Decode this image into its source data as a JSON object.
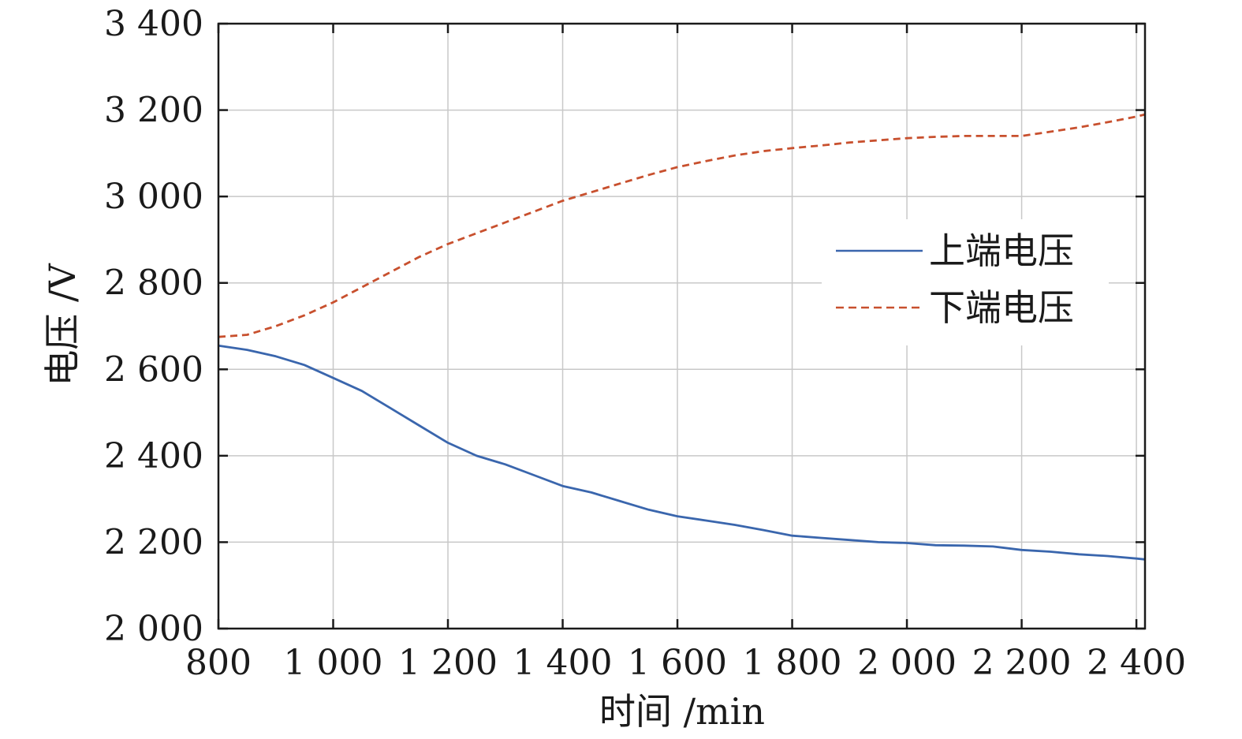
{
  "chart_data": {
    "type": "line",
    "title": "",
    "xlabel": "时间 /min",
    "ylabel": "电压 /V",
    "xlim": [
      800,
      2415
    ],
    "ylim": [
      2000,
      3400
    ],
    "x_ticks": [
      800,
      1000,
      1200,
      1400,
      1600,
      1800,
      2000,
      2200,
      2400
    ],
    "x_tick_labels": [
      "800",
      "1 000",
      "1 200",
      "1 400",
      "1 600",
      "1 800",
      "2 000",
      "2 200",
      "2 400"
    ],
    "y_ticks": [
      2000,
      2200,
      2400,
      2600,
      2800,
      3000,
      3200,
      3400
    ],
    "y_tick_labels": [
      "2 000",
      "2 200",
      "2 400",
      "2 600",
      "2 800",
      "3 000",
      "3 200",
      "3 400"
    ],
    "grid": true,
    "legend_position": "right",
    "series": [
      {
        "name": "上端电压",
        "color": "#3a66ad",
        "dash": "solid",
        "x": [
          800,
          850,
          900,
          950,
          1000,
          1050,
          1100,
          1150,
          1200,
          1250,
          1300,
          1350,
          1400,
          1450,
          1500,
          1550,
          1600,
          1650,
          1700,
          1750,
          1800,
          1850,
          1900,
          1950,
          2000,
          2050,
          2100,
          2150,
          2200,
          2250,
          2300,
          2350,
          2400,
          2415
        ],
        "y": [
          2655,
          2645,
          2630,
          2610,
          2580,
          2550,
          2510,
          2470,
          2430,
          2400,
          2380,
          2355,
          2330,
          2315,
          2295,
          2275,
          2260,
          2250,
          2240,
          2228,
          2215,
          2210,
          2205,
          2200,
          2198,
          2193,
          2192,
          2190,
          2182,
          2178,
          2172,
          2168,
          2162,
          2160
        ]
      },
      {
        "name": "下端电压",
        "color": "#c8502e",
        "dash": "dashed",
        "x": [
          800,
          850,
          900,
          950,
          1000,
          1050,
          1100,
          1150,
          1200,
          1250,
          1300,
          1350,
          1400,
          1450,
          1500,
          1550,
          1600,
          1650,
          1700,
          1750,
          1800,
          1850,
          1900,
          1950,
          2000,
          2050,
          2100,
          2150,
          2200,
          2250,
          2300,
          2350,
          2400,
          2415
        ],
        "y": [
          2675,
          2680,
          2700,
          2725,
          2755,
          2790,
          2825,
          2860,
          2890,
          2915,
          2940,
          2965,
          2990,
          3010,
          3030,
          3050,
          3068,
          3082,
          3095,
          3105,
          3112,
          3118,
          3125,
          3130,
          3135,
          3138,
          3140,
          3140,
          3140,
          3150,
          3160,
          3172,
          3185,
          3190
        ]
      }
    ]
  }
}
